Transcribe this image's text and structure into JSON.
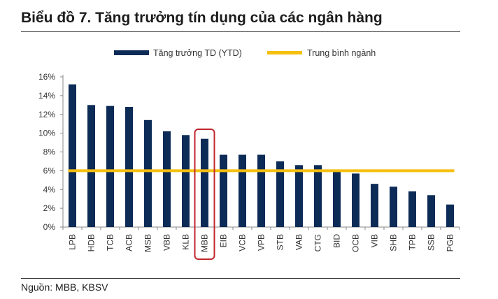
{
  "header": {
    "title": "Biểu đồ 7. Tăng trưởng tín dụng của các ngân hàng"
  },
  "footer": {
    "source": "Nguồn: MBB, KBSV"
  },
  "colors": {
    "bar": "#0d2b57",
    "average": "#f5bf0f",
    "highlight": "#c0272d"
  },
  "chart_data": {
    "type": "bar",
    "categories": [
      "LPB",
      "HDB",
      "TCB",
      "ACB",
      "MSB",
      "VBB",
      "KLB",
      "MBB",
      "EIB",
      "VCB",
      "VPB",
      "STB",
      "VAB",
      "CTG",
      "BID",
      "OCB",
      "VIB",
      "SHB",
      "TPB",
      "SSB",
      "PGB"
    ],
    "series": [
      {
        "name": "Tăng trưởng TD (YTD)",
        "values": [
          15.2,
          13.0,
          12.9,
          12.8,
          11.4,
          10.2,
          9.8,
          9.4,
          7.7,
          7.7,
          7.7,
          7.0,
          6.6,
          6.6,
          5.9,
          5.7,
          4.6,
          4.3,
          3.8,
          3.4,
          2.4
        ]
      },
      {
        "name": "Trung bình ngành",
        "type": "line",
        "value": 6.0
      }
    ],
    "highlight_category": "MBB",
    "y_ticks": [
      "0%",
      "2%",
      "4%",
      "6%",
      "8%",
      "10%",
      "12%",
      "14%",
      "16%"
    ],
    "ylim": [
      0,
      16
    ],
    "y_unit": "%",
    "legend_position": "top-center",
    "grid": false
  }
}
